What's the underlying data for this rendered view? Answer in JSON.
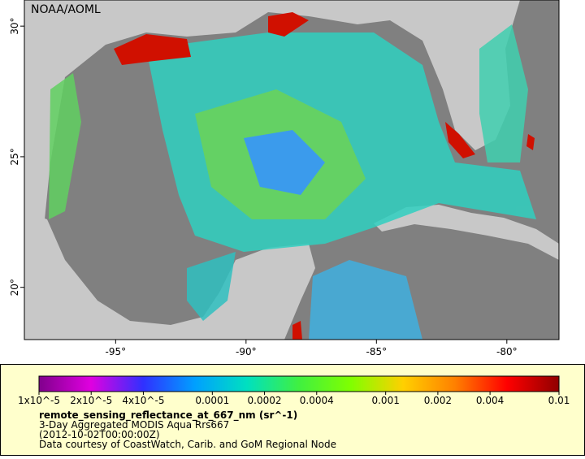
{
  "credit": "NOAA/AOML",
  "map": {
    "xlim": [
      -98.5,
      -78
    ],
    "ylim": [
      18,
      31
    ],
    "xticks": [
      {
        "value": -95,
        "label": "-95°"
      },
      {
        "value": -90,
        "label": "-90°"
      },
      {
        "value": -85,
        "label": "-85°"
      },
      {
        "value": -80,
        "label": "-80°"
      }
    ],
    "yticks": [
      {
        "value": 20,
        "label": "20°"
      },
      {
        "value": 25,
        "label": "25°"
      },
      {
        "value": 30,
        "label": "30°"
      }
    ]
  },
  "colorbar": {
    "scale": "log",
    "lim": [
      1e-05,
      0.01
    ],
    "colors": [
      "#80008c",
      "#e000e0",
      "#3030ff",
      "#00a0ff",
      "#00e0c0",
      "#40f040",
      "#80ff00",
      "#ffd000",
      "#ff8000",
      "#ff0000",
      "#900000"
    ],
    "ticks": [
      {
        "value": 1e-05,
        "label": "1x10^-5"
      },
      {
        "value": 2e-05,
        "label": "2x10^-5"
      },
      {
        "value": 4e-05,
        "label": "4x10^-5"
      },
      0.0001,
      0.0002,
      0.0004,
      0.001,
      0.002,
      0.004,
      0.01
    ]
  },
  "legend": {
    "variable": "remote_sensing_reflectance_at_667_nm (sr^-1)",
    "title": "3-Day Aggregated MODIS Aqua Rrs667",
    "time": "(2012-10-02T00:00:00Z)",
    "source": "Data courtesy of CoastWatch, Carib. and GoM Regional Node"
  }
}
